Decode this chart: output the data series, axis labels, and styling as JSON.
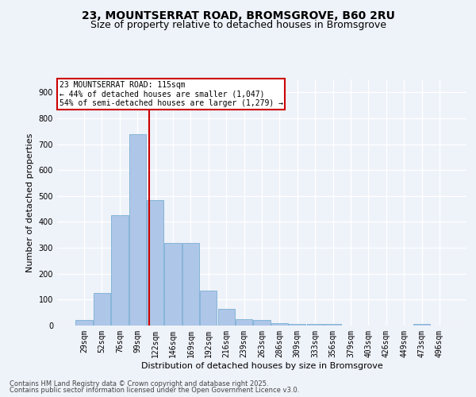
{
  "title_line1": "23, MOUNTSERRAT ROAD, BROMSGROVE, B60 2RU",
  "title_line2": "Size of property relative to detached houses in Bromsgrove",
  "xlabel": "Distribution of detached houses by size in Bromsgrove",
  "ylabel": "Number of detached properties",
  "annotation_title": "23 MOUNTSERRAT ROAD: 115sqm",
  "annotation_line2": "← 44% of detached houses are smaller (1,047)",
  "annotation_line3": "54% of semi-detached houses are larger (1,279) →",
  "footer_line1": "Contains HM Land Registry data © Crown copyright and database right 2025.",
  "footer_line2": "Contains public sector information licensed under the Open Government Licence v3.0.",
  "bar_color": "#aec6e8",
  "bar_edge_color": "#7aafd4",
  "background_color": "#eef2f9",
  "grid_color": "#ffffff",
  "vline_color": "#cc0000",
  "annotation_box_color": "#ffffff",
  "annotation_box_edge": "#cc0000",
  "categories": [
    "29sqm",
    "52sqm",
    "76sqm",
    "99sqm",
    "122sqm",
    "146sqm",
    "169sqm",
    "192sqm",
    "216sqm",
    "239sqm",
    "263sqm",
    "286sqm",
    "309sqm",
    "333sqm",
    "356sqm",
    "379sqm",
    "403sqm",
    "426sqm",
    "449sqm",
    "473sqm",
    "496sqm"
  ],
  "values": [
    20,
    125,
    425,
    740,
    485,
    320,
    320,
    135,
    65,
    25,
    20,
    10,
    7,
    5,
    5,
    0,
    0,
    0,
    0,
    5,
    0
  ],
  "vline_x": 3.65,
  "ylim": [
    0,
    950
  ],
  "yticks": [
    0,
    100,
    200,
    300,
    400,
    500,
    600,
    700,
    800,
    900
  ],
  "title_fontsize": 10,
  "subtitle_fontsize": 9,
  "annotation_fontsize": 7,
  "xlabel_fontsize": 8,
  "ylabel_fontsize": 8,
  "tick_fontsize": 7,
  "footer_fontsize": 6
}
